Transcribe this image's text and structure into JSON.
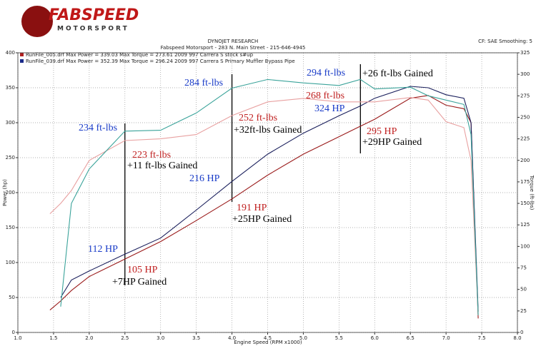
{
  "chart_data": {
    "type": "line",
    "logo_text": "FABSPEED",
    "logo_subtext": "MOTORSPORT",
    "title": "DYNOJET RESEARCH",
    "subtitle": "Fabspeed Motorsport - 283 N. Main Street - 215-646-4945",
    "settings_text": "CF: SAE Smoothing: 5",
    "legend_info": [
      "RunFile_005.drf Max Power = 339.03   Max Torque = 273.61   2009 997 Carrera S stock s#up",
      "RunFile_039.drf Max Power = 352.39   Max Torque = 296.24   2009 997 Carrera S Primary Muffler Bypass Pipe"
    ],
    "legend_colors": [
      "#b02020",
      "#1a2a8a"
    ],
    "x_label": "Engine Speed (RPM x1000)",
    "y_label": "Power (hp)",
    "y2_label": "Torque (ft-lbs)",
    "x": [
      1.45,
      1.6,
      1.75,
      2.0,
      2.5,
      3.0,
      3.5,
      4.0,
      4.5,
      5.0,
      5.5,
      5.8,
      6.0,
      6.5,
      6.75,
      7.0,
      7.25,
      7.35,
      7.45
    ],
    "series": [
      {
        "name": "RunFile_005 Power",
        "color": "#9a1a1a",
        "values": [
          32,
          45,
          60,
          80,
          105,
          130,
          160,
          191,
          225,
          255,
          280,
          295,
          305,
          335,
          339,
          325,
          320,
          300,
          20
        ]
      },
      {
        "name": "RunFile_039 Power",
        "color": "#1a1f5c",
        "values": [
          null,
          50,
          75,
          88,
          112,
          135,
          175,
          216,
          255,
          285,
          310,
          324,
          335,
          352,
          350,
          340,
          335,
          300,
          30
        ]
      },
      {
        "name": "RunFile_005 Torque",
        "color": "#e8a0a0",
        "axis": "y2",
        "values": [
          138,
          150,
          165,
          200,
          223,
          225,
          230,
          252,
          268,
          272,
          268,
          268,
          268,
          273,
          270,
          245,
          238,
          200,
          20
        ]
      },
      {
        "name": "RunFile_039 Torque",
        "color": "#3aa39a",
        "axis": "y2",
        "values": [
          null,
          30,
          150,
          190,
          234,
          235,
          255,
          284,
          294,
          290,
          287,
          294,
          283,
          285,
          275,
          270,
          265,
          230,
          20
        ]
      }
    ],
    "markers_x": [
      2.5,
      4.0,
      5.8
    ],
    "annotations": [
      {
        "text": "234 ft-lbs",
        "color": "#1a3cc8"
      },
      {
        "text": "223 ft-lbs",
        "color": "#c02020"
      },
      {
        "text": "+11 ft-lbs Gained",
        "color": "#000000"
      },
      {
        "text": "284 ft-lbs",
        "color": "#1a3cc8"
      },
      {
        "text": "252 ft-lbs",
        "color": "#c02020"
      },
      {
        "text": "+32ft-lbs Gained",
        "color": "#000000"
      },
      {
        "text": "294 ft-lbs",
        "color": "#1a3cc8"
      },
      {
        "text": "+26 ft-lbs Gained",
        "color": "#000000"
      },
      {
        "text": "268 ft-lbs",
        "color": "#c02020"
      },
      {
        "text": "324 HP",
        "color": "#1a3cc8"
      },
      {
        "text": "295 HP",
        "color": "#c02020"
      },
      {
        "text": "+29HP Gained",
        "color": "#000000"
      },
      {
        "text": "216 HP",
        "color": "#1a3cc8"
      },
      {
        "text": "191 HP",
        "color": "#c02020"
      },
      {
        "text": "+25HP Gained",
        "color": "#000000"
      },
      {
        "text": "112 HP",
        "color": "#1a3cc8"
      },
      {
        "text": "105 HP",
        "color": "#c02020"
      },
      {
        "text": "+7HP Gained",
        "color": "#000000"
      }
    ],
    "xlim": [
      1.0,
      8.0
    ],
    "xticks": [
      {
        "value": 1.0,
        "label": "1.0"
      },
      1.5,
      {
        "value": 2.0,
        "label": "2.0"
      },
      2.5,
      {
        "value": 3.0,
        "label": "3.0"
      },
      3.5,
      {
        "value": 4.0,
        "label": "4.0"
      },
      4.5,
      {
        "value": 5.0,
        "label": "5.0"
      },
      5.5,
      {
        "value": 6.0,
        "label": "6.0"
      },
      6.5,
      {
        "value": 7.0,
        "label": "7.0"
      },
      7.5,
      {
        "value": 8.0,
        "label": "8.0"
      }
    ],
    "ylim": [
      0,
      400
    ],
    "yticks": [
      0,
      50,
      100,
      150,
      200,
      250,
      300,
      350,
      400
    ],
    "y2lim": [
      0,
      325
    ],
    "y2ticks": [
      0,
      25,
      50,
      75,
      100,
      125,
      150,
      175,
      200,
      225,
      250,
      275,
      300,
      325
    ],
    "grid": true
  }
}
